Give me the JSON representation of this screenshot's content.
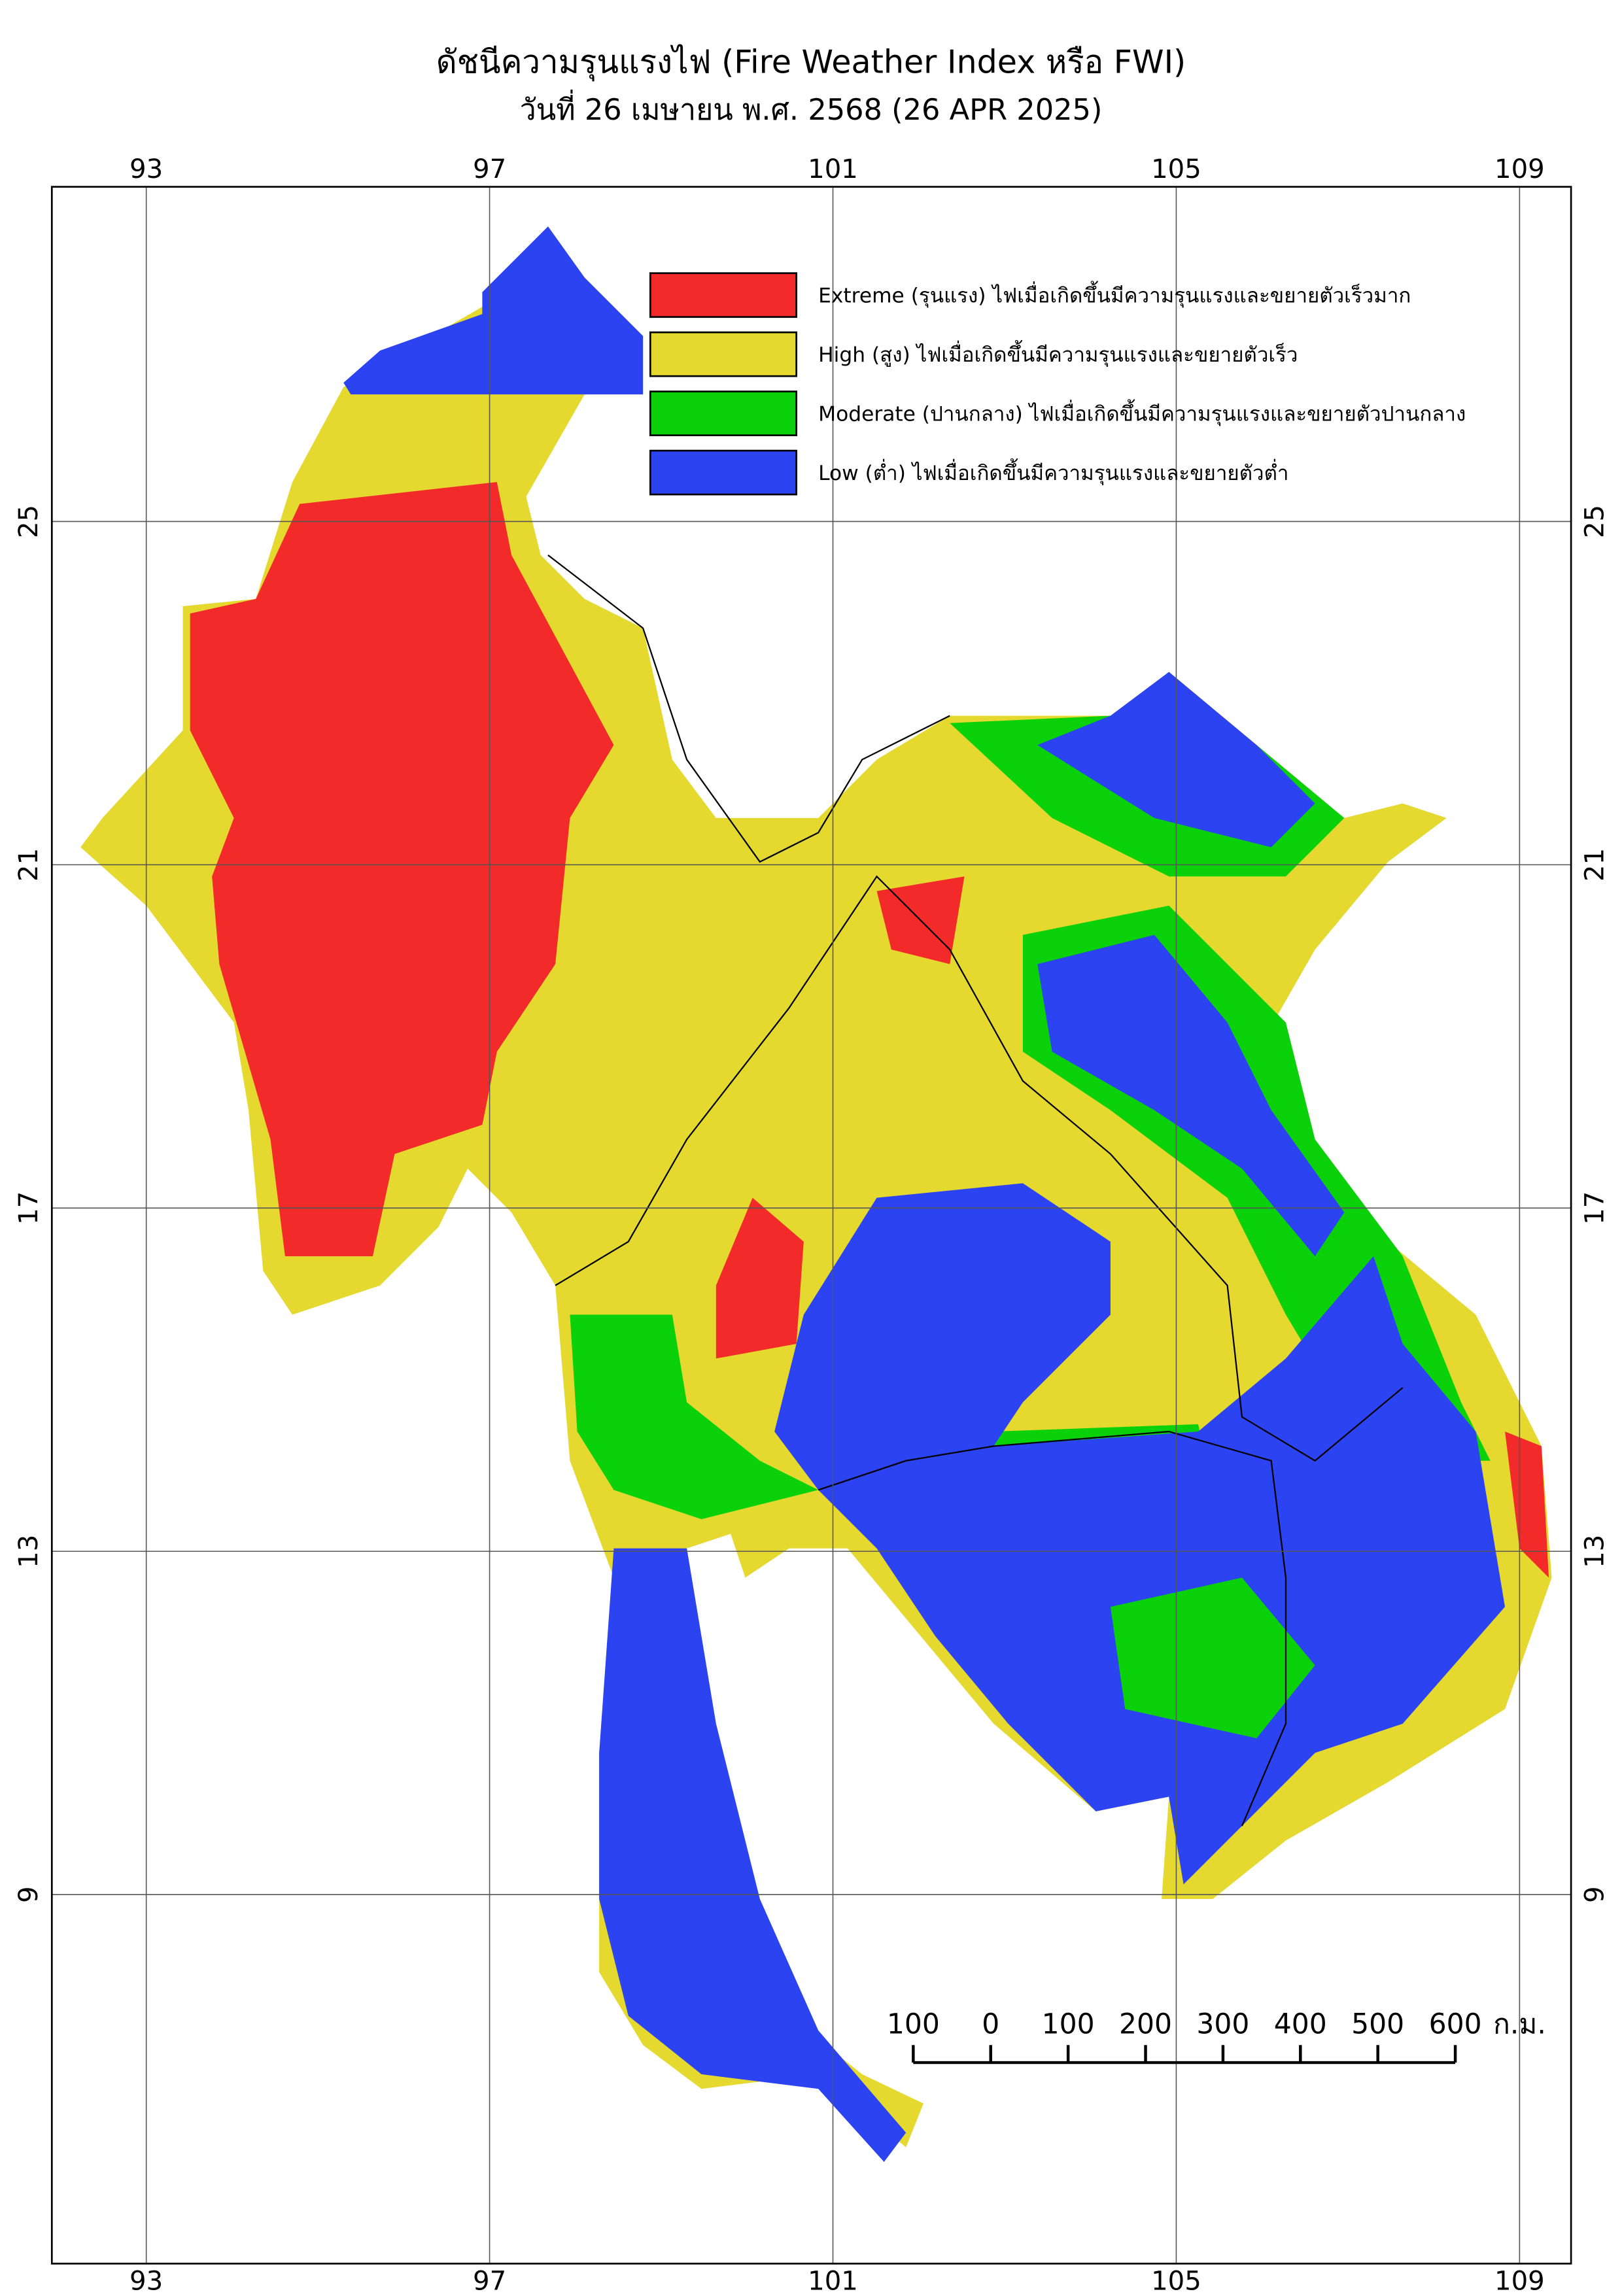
{
  "title": "ดัชนีความรุนแรงไฟ (Fire Weather Index หรือ FWI)",
  "subtitle": "วันที่ 26 เมษายน พ.ศ. 2568 (26 APR 2025)",
  "map": {
    "extent": {
      "lon": [
        91.9,
        109.6
      ],
      "lat": [
        4.7,
        28.9
      ]
    },
    "lon_ticks": [
      93,
      97,
      101,
      105,
      109
    ],
    "lat_ticks": [
      25,
      21,
      17,
      13,
      9
    ],
    "grid": true
  },
  "legend": [
    {
      "label": "Extreme (รุนแรง) ไฟเมื่อเกิดขึ้นมีความรุนแรงและขยายตัวเร็วมาก",
      "color": "#f22a2a"
    },
    {
      "label": "High (สูง) ไฟเมื่อเกิดขึ้นมีความรุนแรงและขยายตัวเร็ว",
      "color": "#e5d82e"
    },
    {
      "label": "Moderate (ปานกลาง) ไฟเมื่อเกิดขึ้นมีความรุนแรงและขยายตัวปานกลาง",
      "color": "#0bd10b"
    },
    {
      "label": "Low (ต่ำ) ไฟเมื่อเกิดขึ้นมีความรุนแรงและขยายตัวต่ำ",
      "color": "#2b43f0"
    }
  ],
  "scale_bar": {
    "ticks": [
      {
        "value": -100,
        "label": "100"
      },
      0,
      100,
      200,
      300,
      400,
      500,
      600
    ],
    "unit": "ก.ม."
  }
}
